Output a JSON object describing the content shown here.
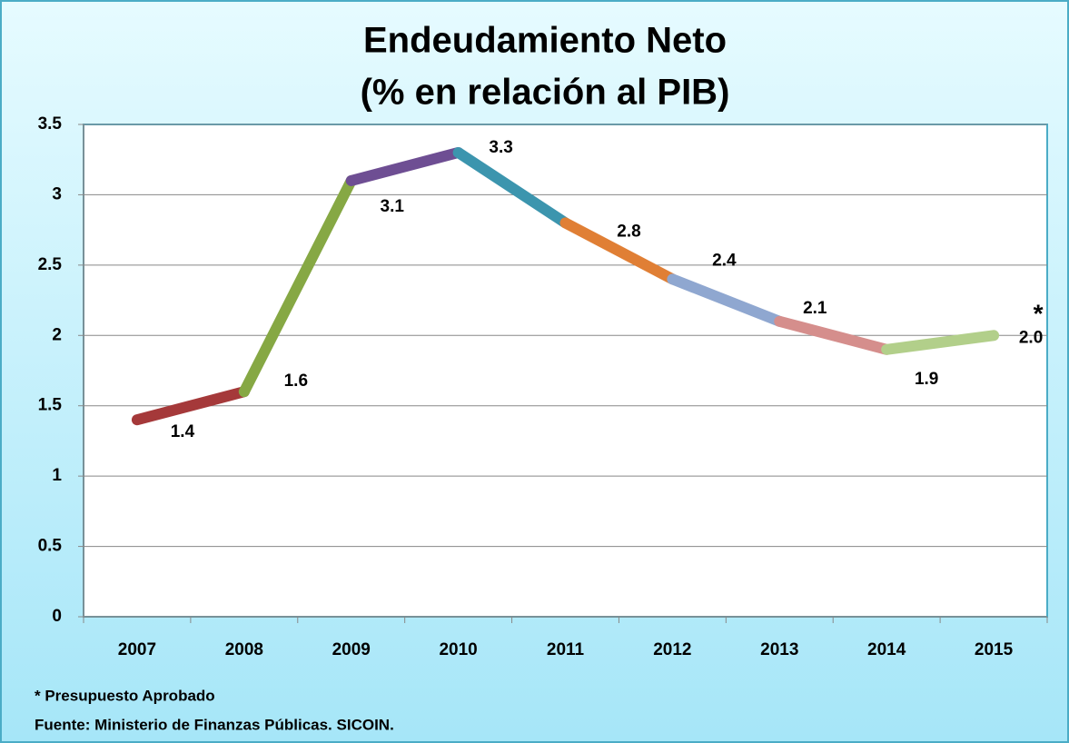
{
  "chart_data": {
    "type": "line",
    "title": [
      "Endeudamiento Neto",
      "(%  en relación al PIB)"
    ],
    "categories": [
      "2007",
      "2008",
      "2009",
      "2010",
      "2011",
      "2012",
      "2013",
      "2014",
      "2015"
    ],
    "series": [
      {
        "values": [
          1.4,
          1.6,
          3.1,
          3.3,
          2.8,
          2.4,
          2.1,
          1.9,
          2.0
        ],
        "value_labels": [
          "1.4",
          "1.6",
          "3.1",
          "3.3",
          "2.8",
          "2.4",
          "2.1",
          "1.9",
          "2.0"
        ],
        "segment_colors": [
          "#a5393a",
          "#86a844",
          "#6e4e93",
          "#3c95ae",
          "#e07f35",
          "#8fa7d0",
          "#d58e8c",
          "#b2cf8a"
        ]
      }
    ],
    "annotation": "*",
    "ylim": [
      0,
      3.5
    ],
    "yticks": [
      0,
      0.5,
      1,
      1.5,
      2,
      2.5,
      3,
      3.5
    ],
    "grid": true,
    "notes": [
      "* Presupuesto Aprobado",
      "Fuente: Ministerio de Finanzas  Públicas.  SICOIN."
    ]
  }
}
